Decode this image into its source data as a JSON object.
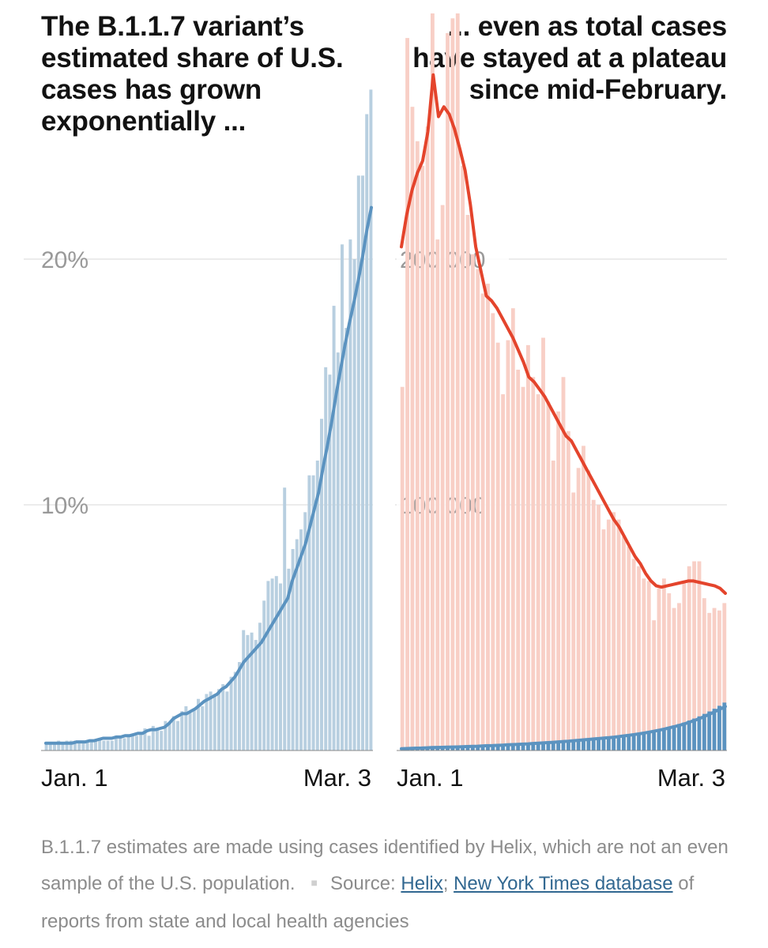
{
  "chart_data": [
    {
      "type": "bar",
      "title": "The B.1.1.7 variant’s\nestimated share of U.S.\ncases has grown\nexponentially ...",
      "xlabel": "",
      "ylabel": "",
      "ylim": [
        0,
        30
      ],
      "yticks": [
        {
          "value": 20,
          "label": "20%"
        },
        {
          "value": 10,
          "label": "10%"
        }
      ],
      "xtick_labels": [
        "Jan. 1",
        "Mar. 3"
      ],
      "colors": {
        "bars": "#b8cfe0",
        "line": "#5b93c0"
      },
      "series": [
        {
          "name": "Estimated B.1.1.7 share, daily (%)",
          "kind": "bar",
          "values": [
            0.3,
            0.3,
            0.3,
            0.4,
            0.3,
            0.4,
            0.4,
            0.4,
            0.4,
            0.3,
            0.4,
            0.4,
            0.4,
            0.5,
            0.4,
            0.4,
            0.4,
            0.6,
            0.6,
            0.5,
            0.6,
            0.6,
            0.6,
            0.7,
            0.9,
            0.6,
            1.0,
            0.9,
            0.8,
            1.2,
            1.1,
            1.4,
            1.2,
            1.6,
            1.8,
            1.6,
            1.7,
            2.1,
            1.8,
            2.3,
            2.4,
            2.3,
            2.5,
            2.7,
            2.4,
            3.0,
            3.2,
            3.6,
            4.9,
            4.7,
            4.8,
            4.5,
            5.2,
            6.1,
            6.9,
            7.0,
            7.1,
            6.8,
            10.7,
            7.4,
            8.2,
            8.6,
            9.0,
            9.7,
            11.2,
            11.2,
            11.8,
            13.5,
            15.6,
            15.3,
            18.1,
            16.2,
            20.6,
            17.2,
            20.8,
            20.0,
            23.4,
            23.4,
            25.9,
            26.9
          ]
        },
        {
          "name": "7-day average (%)",
          "kind": "line",
          "values": [
            0.3,
            0.3,
            0.3,
            0.3,
            0.3,
            0.3,
            0.3,
            0.35,
            0.35,
            0.35,
            0.4,
            0.4,
            0.45,
            0.5,
            0.5,
            0.5,
            0.55,
            0.55,
            0.6,
            0.6,
            0.65,
            0.7,
            0.7,
            0.8,
            0.85,
            0.85,
            0.9,
            0.95,
            1.1,
            1.3,
            1.4,
            1.5,
            1.5,
            1.6,
            1.7,
            1.85,
            2.0,
            2.1,
            2.2,
            2.3,
            2.5,
            2.6,
            2.8,
            3.0,
            3.3,
            3.6,
            3.8,
            4.0,
            4.2,
            4.4,
            4.7,
            5.0,
            5.3,
            5.6,
            5.9,
            6.2,
            6.9,
            7.4,
            7.9,
            8.4,
            9.1,
            9.8,
            10.5,
            11.5,
            12.4,
            13.4,
            14.5,
            15.5,
            16.5,
            17.4,
            18.2,
            19.1,
            20.1,
            21.2,
            22.1
          ]
        }
      ]
    },
    {
      "type": "bar",
      "title": "... even as total cases\nhave stayed at a plateau\nsince mid-February.",
      "xlabel": "",
      "ylabel": "",
      "ylim": [
        0,
        300000
      ],
      "yticks": [
        {
          "value": 200000,
          "label": "200,000"
        },
        {
          "value": 100000,
          "label": "100,000"
        }
      ],
      "xtick_labels": [
        "Jan. 1",
        "Mar. 3"
      ],
      "colors": {
        "bars": "#f8cfc6",
        "line": "#e4442c",
        "variant_bars": "#5b93c0"
      },
      "series": [
        {
          "name": "New cases, daily",
          "kind": "bar",
          "values": [
            148000,
            290000,
            262000,
            248000,
            238000,
            254000,
            300000,
            208000,
            222000,
            292000,
            298000,
            300000,
            238000,
            218000,
            202000,
            196000,
            186000,
            190000,
            178000,
            166000,
            145000,
            167000,
            180000,
            155000,
            148000,
            165000,
            152000,
            145000,
            168000,
            142000,
            118000,
            138000,
            152000,
            130000,
            105000,
            115000,
            124000,
            114000,
            102000,
            100000,
            90000,
            94000,
            97000,
            94000,
            87000,
            83000,
            78000,
            75000,
            70000,
            69000,
            53000,
            66000,
            70000,
            64000,
            58000,
            60000,
            68000,
            75000,
            77000,
            77000,
            62000,
            56000,
            58000,
            57000,
            60000
          ]
        },
        {
          "name": "7-day average cases",
          "kind": "line",
          "values": [
            205000,
            218000,
            228000,
            235000,
            240000,
            252000,
            275000,
            258000,
            262000,
            259000,
            253000,
            245000,
            236000,
            222000,
            205000,
            195000,
            185000,
            183000,
            180000,
            176000,
            172000,
            168000,
            163000,
            158000,
            152000,
            150000,
            147000,
            144000,
            140000,
            136000,
            132000,
            128000,
            126000,
            122000,
            118000,
            114000,
            110000,
            106000,
            102000,
            98000,
            94000,
            91000,
            87000,
            83000,
            79000,
            76000,
            72000,
            69000,
            67000,
            66500,
            67000,
            67500,
            68000,
            68500,
            69000,
            69000,
            68500,
            68000,
            67500,
            67000,
            66000,
            64000
          ]
        },
        {
          "name": "Estimated B.1.1.7 cases, daily",
          "kind": "bar",
          "values": [
            700,
            900,
            800,
            1000,
            900,
            1100,
            1200,
            1300,
            1100,
            1300,
            1400,
            1500,
            1400,
            1600,
            1700,
            1800,
            1900,
            2000,
            2000,
            2100,
            2200,
            2300,
            2400,
            2500,
            2600,
            2700,
            2900,
            3000,
            3100,
            3200,
            3400,
            3500,
            3700,
            3900,
            4000,
            4200,
            4400,
            4600,
            4700,
            4900,
            5100,
            5300,
            5600,
            5800,
            6100,
            6400,
            6700,
            7000,
            7400,
            7800,
            8200,
            8600,
            9100,
            9600,
            10200,
            10800,
            11400,
            12200,
            13000,
            13900,
            14900,
            15900,
            17000,
            18200,
            19500
          ]
        },
        {
          "name": "B.1.1.7 7-day average",
          "kind": "line",
          "values": [
            700,
            800,
            900,
            950,
            1000,
            1100,
            1200,
            1250,
            1300,
            1350,
            1400,
            1450,
            1500,
            1600,
            1700,
            1750,
            1850,
            1950,
            2000,
            2100,
            2200,
            2300,
            2400,
            2500,
            2600,
            2700,
            2850,
            2950,
            3100,
            3200,
            3350,
            3500,
            3650,
            3800,
            4000,
            4150,
            4350,
            4500,
            4700,
            4850,
            5050,
            5250,
            5450,
            5700,
            5950,
            6200,
            6500,
            6800,
            7150,
            7500,
            7900,
            8300,
            8750,
            9250,
            9750,
            10300,
            10900,
            11600,
            12300,
            13100,
            14000,
            14900,
            15900,
            16900,
            17900
          ]
        }
      ]
    }
  ],
  "footnote": {
    "text": "B.1.1.7 estimates are made using cases identified by Helix, which are not an even sample of the U.S. population.",
    "separator": "■",
    "source_prefix": "Source: ",
    "link1": "Helix",
    "between": "; ",
    "link2": "New York Times database",
    "suffix": " of reports from state and local health agencies"
  }
}
